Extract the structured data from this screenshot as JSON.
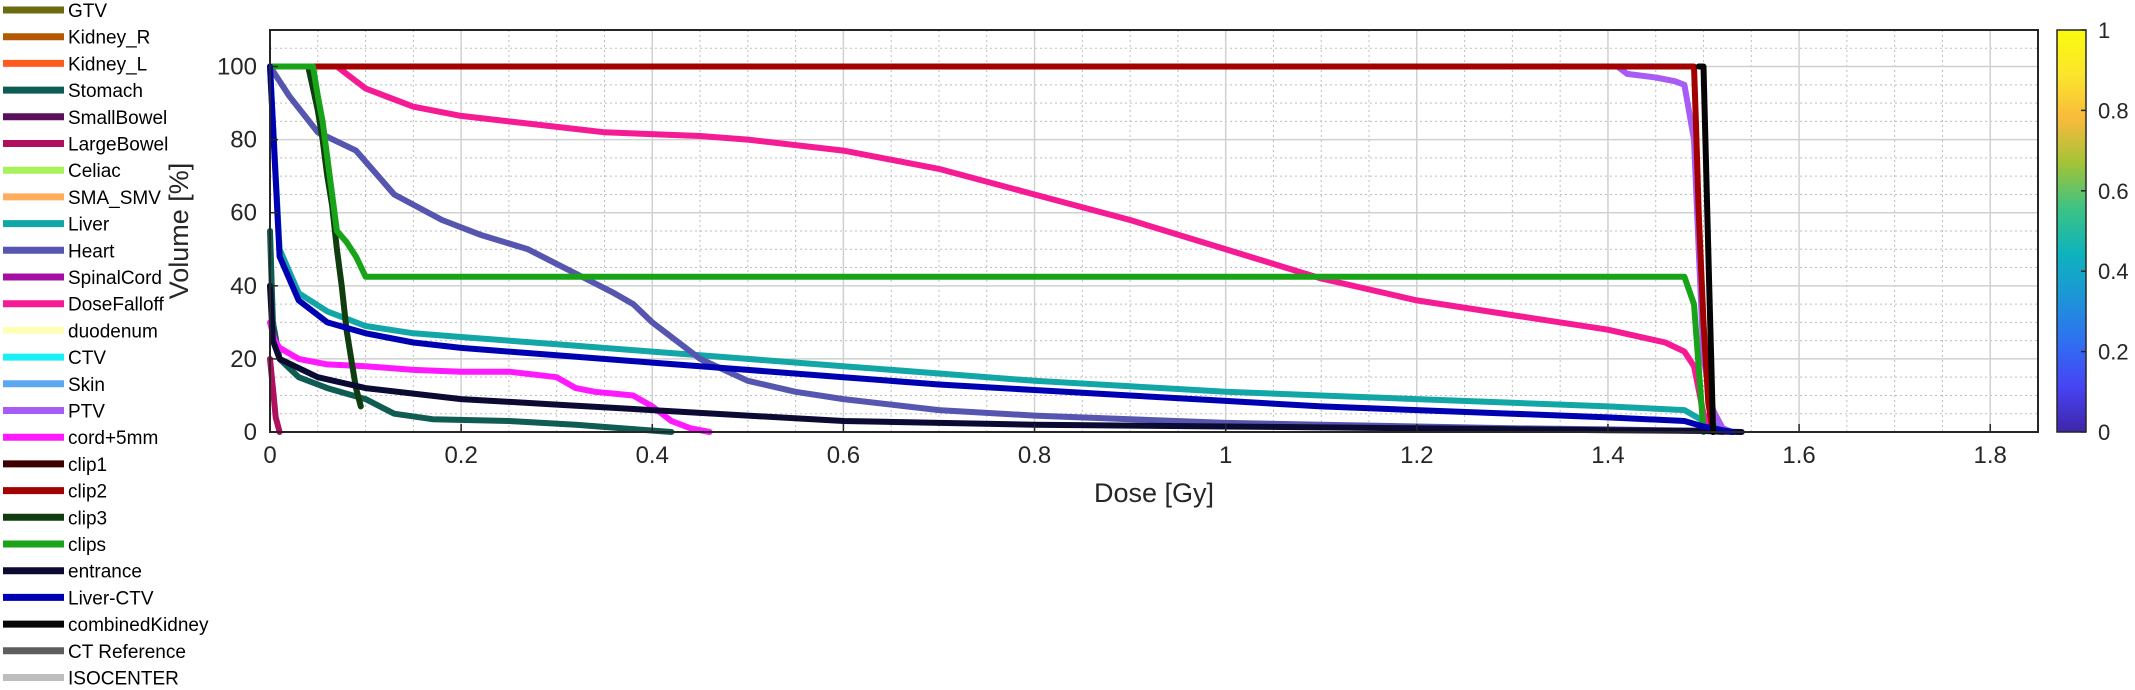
{
  "chart_data": {
    "type": "line",
    "title": "",
    "xlabel": "Dose [Gy]",
    "ylabel": "Volume [%]",
    "xlim": [
      0,
      1.85
    ],
    "ylim": [
      0,
      110
    ],
    "xticks": [
      0,
      0.2,
      0.4,
      0.6,
      0.8,
      1,
      1.2,
      1.4,
      1.6,
      1.8
    ],
    "xtick_labels": [
      "0",
      "0.2",
      "0.4",
      "0.6",
      "0.8",
      "1",
      "1.2",
      "1.4",
      "1.6",
      "1.8"
    ],
    "yticks": [
      0,
      20,
      40,
      60,
      80,
      100
    ],
    "ytick_labels": [
      "0",
      "20",
      "40",
      "60",
      "80",
      "100"
    ],
    "x_minor_step": 0.05,
    "y_minor_step": 5,
    "grid": true,
    "legend_position": "outside-left",
    "colorbar": {
      "ticks": [
        0,
        0.2,
        0.4,
        0.6,
        0.8,
        1
      ],
      "tick_labels": [
        "0",
        "0.2",
        "0.4",
        "0.6",
        "0.8",
        "1"
      ],
      "colormap": "parula",
      "colors": [
        "#3e26a8",
        "#4743f3",
        "#2f6ff2",
        "#1d95d8",
        "#0eb3bc",
        "#3cc384",
        "#a1c337",
        "#f8ba3c",
        "#fbe52b",
        "#f9fb0e"
      ]
    },
    "series": [
      {
        "name": "GTV",
        "color": "#6b6b0f",
        "x": [],
        "y": []
      },
      {
        "name": "Kidney_R",
        "color": "#b35900",
        "x": [],
        "y": []
      },
      {
        "name": "Kidney_L",
        "color": "#ff5a1f",
        "x": [],
        "y": []
      },
      {
        "name": "Stomach",
        "color": "#0f5c53",
        "x": [
          0,
          0.003,
          0.01,
          0.03,
          0.06,
          0.1,
          0.13,
          0.17,
          0.25,
          0.32,
          0.38,
          0.42
        ],
        "y": [
          55,
          30,
          20,
          15,
          12,
          9,
          5,
          3.5,
          3,
          2,
          0.8,
          0
        ]
      },
      {
        "name": "SmallBowel",
        "color": "#5a0f5a",
        "x": [],
        "y": []
      },
      {
        "name": "LargeBowel",
        "color": "#b0105e",
        "x": [
          0,
          0.003,
          0.006,
          0.01
        ],
        "y": [
          20,
          12,
          4,
          0
        ]
      },
      {
        "name": "Celiac",
        "color": "#a7f25a",
        "x": [],
        "y": []
      },
      {
        "name": "SMA_SMV",
        "color": "#ffad5c",
        "x": [],
        "y": []
      },
      {
        "name": "Liver",
        "color": "#12a6a6",
        "x": [
          0,
          0.01,
          0.03,
          0.06,
          0.1,
          0.15,
          0.2,
          0.3,
          0.4,
          0.5,
          0.6,
          0.7,
          0.8,
          0.9,
          1.0,
          1.1,
          1.2,
          1.3,
          1.4,
          1.48,
          1.5,
          1.52,
          1.53
        ],
        "y": [
          100,
          50,
          38,
          33,
          29,
          27,
          26,
          24,
          22,
          20,
          18,
          16,
          14,
          12.5,
          11,
          10,
          9,
          8,
          7,
          6,
          3,
          1,
          0
        ]
      },
      {
        "name": "Heart",
        "color": "#5656b0",
        "x": [
          0,
          0.02,
          0.05,
          0.09,
          0.1,
          0.13,
          0.18,
          0.22,
          0.27,
          0.3,
          0.33,
          0.36,
          0.38,
          0.4,
          0.45,
          0.5,
          0.55,
          0.6,
          0.7,
          0.8,
          0.9,
          1.0,
          1.1,
          1.2,
          1.3,
          1.4,
          1.5,
          1.52
        ],
        "y": [
          100,
          92,
          82,
          77,
          74,
          65,
          58,
          54,
          50,
          46,
          42,
          38,
          35,
          30,
          20,
          14,
          11,
          9,
          6,
          4.5,
          3.5,
          2.5,
          2,
          1.5,
          1,
          0.7,
          0.3,
          0
        ]
      },
      {
        "name": "SpinalCord",
        "color": "#a30fa3",
        "x": [],
        "y": []
      },
      {
        "name": "DoseFalloff",
        "color": "#f51b94",
        "x": [
          0.07,
          0.1,
          0.15,
          0.2,
          0.25,
          0.35,
          0.45,
          0.5,
          0.6,
          0.7,
          0.8,
          0.9,
          1.0,
          1.1,
          1.2,
          1.3,
          1.4,
          1.46,
          1.48,
          1.49,
          1.5,
          1.51
        ],
        "y": [
          100,
          94,
          89,
          86.5,
          85,
          82,
          81,
          80,
          77,
          72,
          65,
          58,
          50,
          42,
          36,
          32,
          28,
          24.5,
          22,
          18,
          5,
          0
        ]
      },
      {
        "name": "duodenum",
        "color": "#ffffb8",
        "x": [],
        "y": []
      },
      {
        "name": "CTV",
        "color": "#19f0f5",
        "x": [],
        "y": []
      },
      {
        "name": "Skin",
        "color": "#5ca8f0",
        "x": [],
        "y": []
      },
      {
        "name": "PTV",
        "color": "#a65cf5",
        "x": [
          1.41,
          1.42,
          1.45,
          1.47,
          1.48,
          1.49,
          1.495,
          1.5,
          1.51,
          1.52,
          1.53
        ],
        "y": [
          100,
          98,
          97,
          96,
          95,
          80,
          50,
          20,
          6,
          1,
          0
        ]
      },
      {
        "name": "cord+5mm",
        "color": "#ff19ff",
        "x": [
          0,
          0.005,
          0.01,
          0.03,
          0.06,
          0.1,
          0.15,
          0.2,
          0.25,
          0.3,
          0.32,
          0.34,
          0.36,
          0.38,
          0.4,
          0.42,
          0.44,
          0.46
        ],
        "y": [
          30,
          25,
          23,
          20,
          18.5,
          18,
          17,
          16.5,
          16.5,
          15,
          12,
          11,
          10.5,
          10,
          7,
          3,
          1,
          0
        ]
      },
      {
        "name": "clip1",
        "color": "#3d0000",
        "x": [],
        "y": []
      },
      {
        "name": "clip2",
        "color": "#a30000",
        "x": [
          0,
          1.49,
          1.492,
          1.495,
          1.5,
          1.505,
          1.51
        ],
        "y": [
          100,
          100,
          85,
          60,
          30,
          8,
          0
        ]
      },
      {
        "name": "clip3",
        "color": "#0f3d0f",
        "x": [
          0.04,
          0.05,
          0.055,
          0.06,
          0.065,
          0.07,
          0.075,
          0.08,
          0.085,
          0.09,
          0.095
        ],
        "y": [
          100,
          88,
          80,
          70,
          62,
          50,
          40,
          28,
          20,
          12,
          7
        ]
      },
      {
        "name": "clips",
        "color": "#19a319",
        "x": [
          0,
          0.045,
          0.05,
          0.055,
          0.07,
          0.08,
          0.09,
          0.1,
          0.5,
          1.0,
          1.48,
          1.49,
          1.5
        ],
        "y": [
          100,
          100,
          92,
          85,
          55,
          52,
          48,
          42.5,
          42.5,
          42.5,
          42.5,
          35,
          0
        ]
      },
      {
        "name": "entrance",
        "color": "#0a0a33",
        "x": [
          0,
          0.003,
          0.01,
          0.05,
          0.1,
          0.2,
          0.3,
          0.4,
          0.5,
          0.6,
          0.8,
          1.0,
          1.2,
          1.4,
          1.5,
          1.52,
          1.54
        ],
        "y": [
          40,
          25,
          20,
          15,
          12,
          9,
          7.5,
          6,
          4.5,
          3,
          2,
          1.5,
          1,
          0.5,
          0.3,
          0.1,
          0
        ]
      },
      {
        "name": "Liver-CTV",
        "color": "#0000b3",
        "x": [
          0,
          0.01,
          0.03,
          0.06,
          0.1,
          0.15,
          0.2,
          0.3,
          0.4,
          0.5,
          0.6,
          0.7,
          0.8,
          0.9,
          1.0,
          1.1,
          1.2,
          1.3,
          1.4,
          1.48,
          1.5,
          1.52,
          1.53
        ],
        "y": [
          100,
          48,
          36,
          30,
          27,
          24.5,
          23,
          21,
          19,
          17,
          15,
          13,
          11.5,
          10,
          8.5,
          7,
          6,
          5,
          4,
          3,
          1.5,
          0.5,
          0
        ]
      },
      {
        "name": "combinedKidney",
        "color": "#050505",
        "x": [
          1.495,
          1.5,
          1.502,
          1.504,
          1.506,
          1.508,
          1.51
        ],
        "y": [
          100,
          100,
          80,
          60,
          40,
          20,
          0
        ]
      },
      {
        "name": "CT Reference",
        "color": "#5e5e5e",
        "x": [],
        "y": []
      },
      {
        "name": "ISOCENTER",
        "color": "#bdbdbd",
        "x": [],
        "y": []
      }
    ]
  }
}
